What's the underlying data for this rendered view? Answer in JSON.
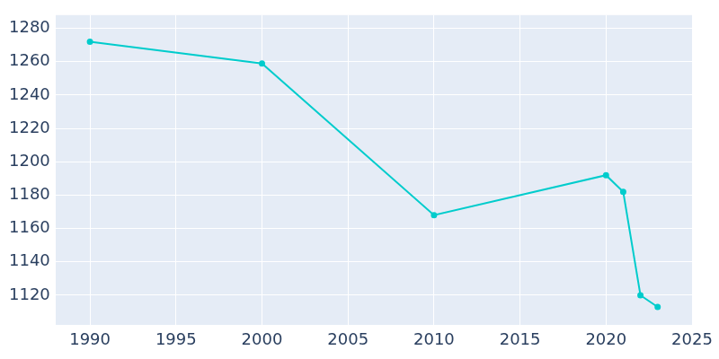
{
  "chart_data": {
    "type": "line",
    "x": [
      1990,
      2000,
      2010,
      2020,
      2021,
      2022,
      2023
    ],
    "values": [
      1272,
      1259,
      1168,
      1192,
      1182,
      1120,
      1113
    ],
    "color": "#00cccc",
    "marker": "circle",
    "xlim": [
      1988,
      2025
    ],
    "xticks": [
      1990,
      1995,
      2000,
      2005,
      2010,
      2015,
      2020,
      2025
    ],
    "ylim": [
      1102,
      1288
    ],
    "yticks": [
      1120,
      1140,
      1160,
      1180,
      1200,
      1220,
      1240,
      1260,
      1280
    ],
    "grid": true
  }
}
